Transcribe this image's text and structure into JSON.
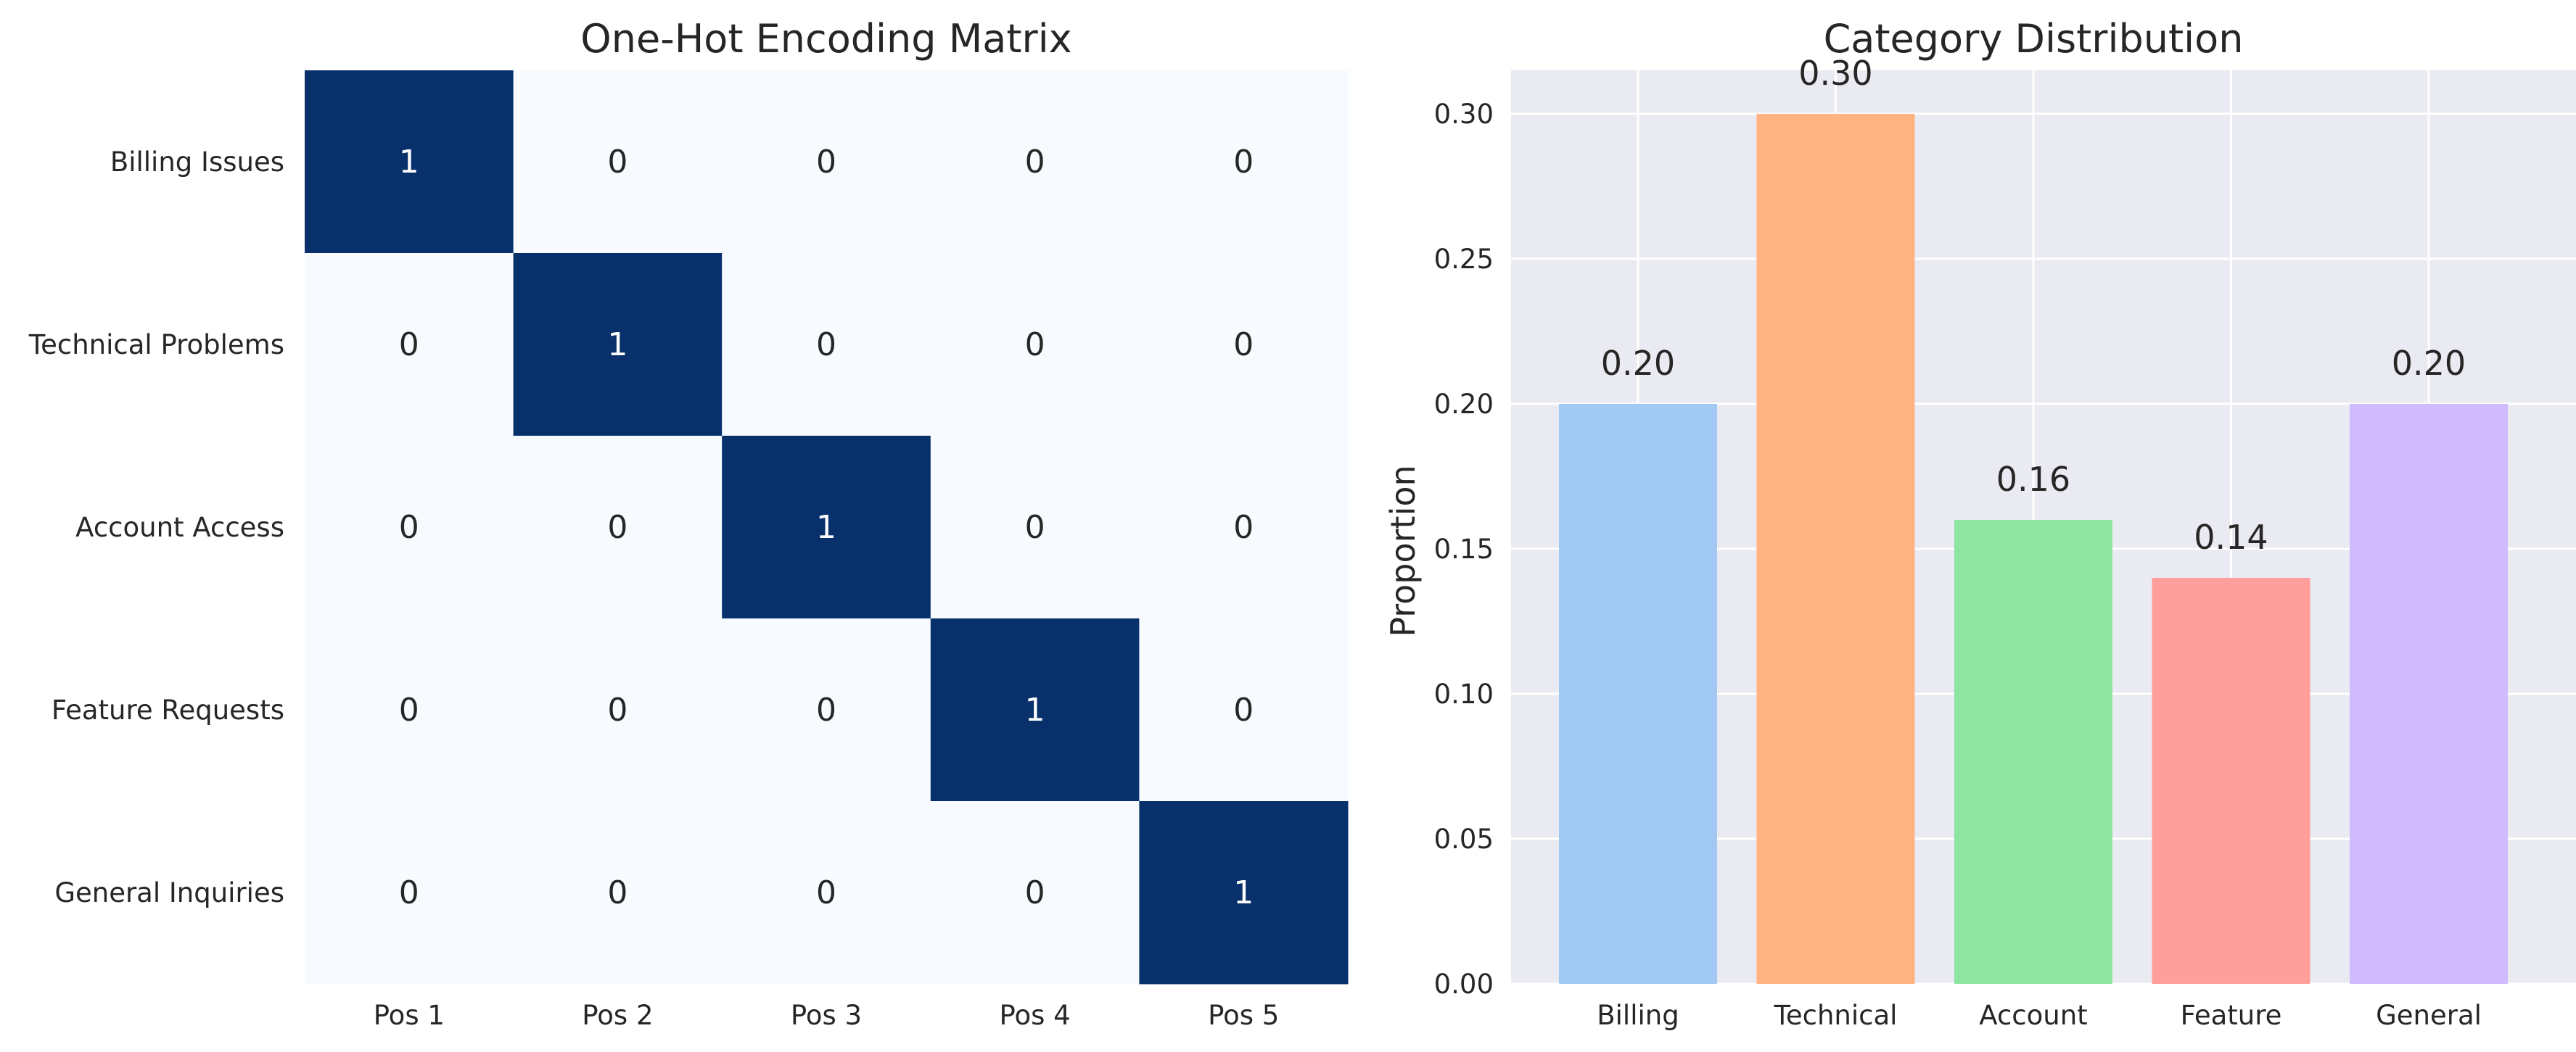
{
  "chart_data": [
    {
      "type": "heatmap",
      "title": "One-Hot Encoding Matrix",
      "rows": [
        "Billing Issues",
        "Technical Problems",
        "Account Access",
        "Feature Requests",
        "General Inquiries"
      ],
      "columns": [
        "Pos 1",
        "Pos 2",
        "Pos 3",
        "Pos 4",
        "Pos 5"
      ],
      "values": [
        [
          1,
          0,
          0,
          0,
          0
        ],
        [
          0,
          1,
          0,
          0,
          0
        ],
        [
          0,
          0,
          1,
          0,
          0
        ],
        [
          0,
          0,
          0,
          1,
          0
        ],
        [
          0,
          0,
          0,
          0,
          1
        ]
      ],
      "colors": {
        "low": "#f7fbff",
        "high": "#08306b",
        "text_on_low": "#262626",
        "text_on_high": "#ffffff"
      }
    },
    {
      "type": "bar",
      "title": "Category Distribution",
      "categories": [
        "Billing",
        "Technical",
        "Account",
        "Feature",
        "General"
      ],
      "values": [
        0.2,
        0.3,
        0.16,
        0.14,
        0.2
      ],
      "data_labels": [
        "0.20",
        "0.30",
        "0.16",
        "0.14",
        "0.20"
      ],
      "xlabel": "",
      "ylabel": "Proportion",
      "ylim": [
        0,
        0.315
      ],
      "yticks": [
        0.0,
        0.05,
        0.1,
        0.15,
        0.2,
        0.25,
        0.3
      ],
      "ytick_labels": [
        "0.00",
        "0.05",
        "0.10",
        "0.15",
        "0.20",
        "0.25",
        "0.30"
      ],
      "grid": true,
      "bar_colors": [
        "#a1c9f4",
        "#ffb482",
        "#8de5a1",
        "#ff9f9b",
        "#d0bbff"
      ],
      "background": "#eaeaf2"
    }
  ]
}
